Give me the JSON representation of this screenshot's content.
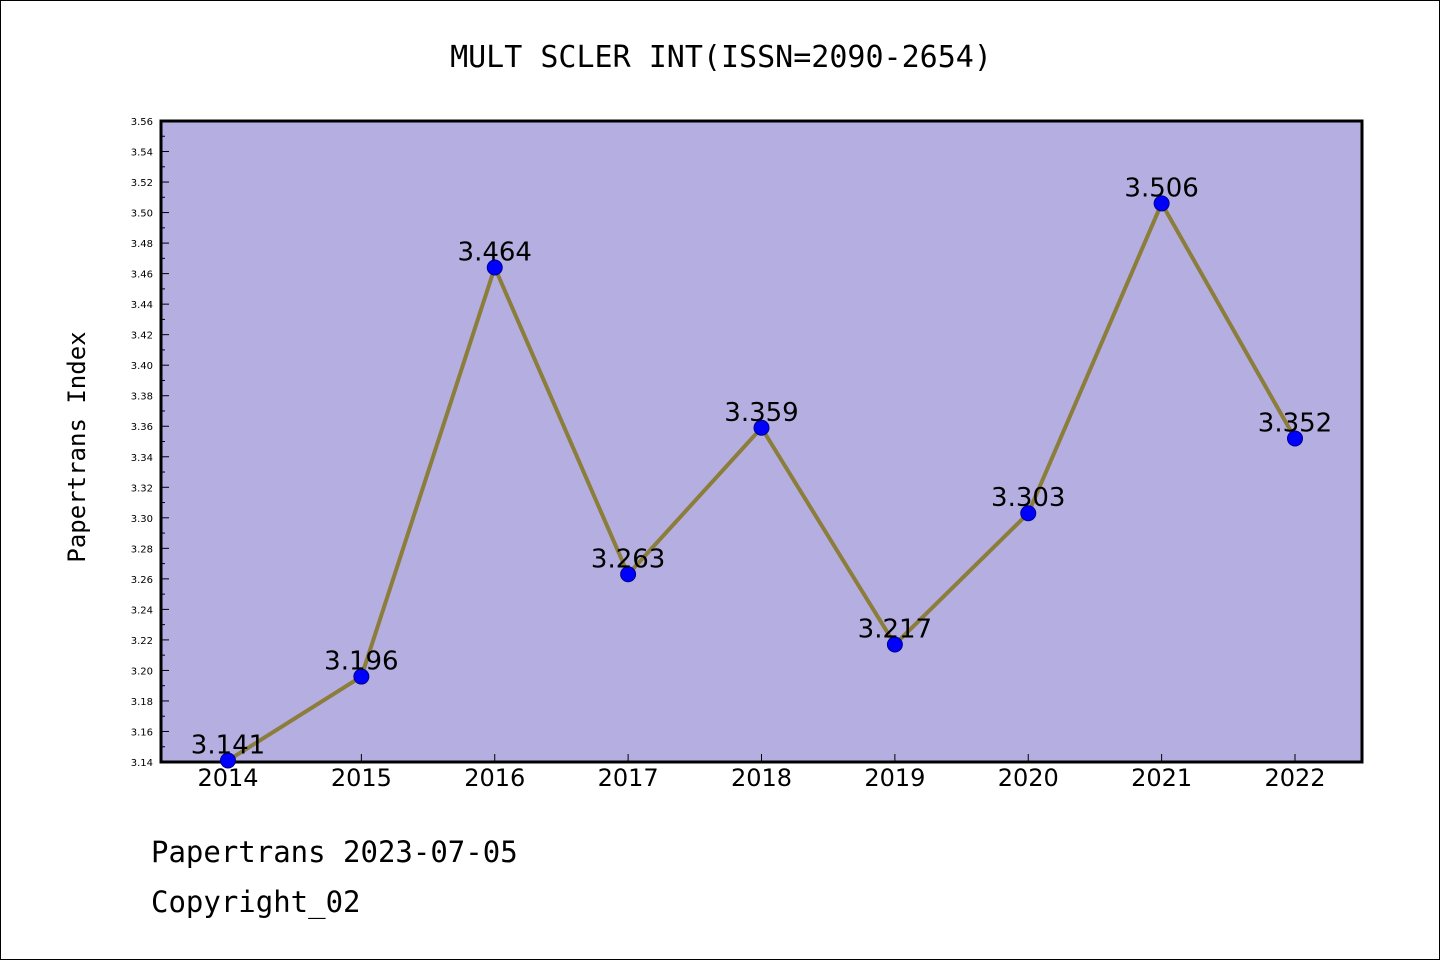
{
  "chart_data": {
    "type": "line",
    "title": "MULT SCLER INT(ISSN=2090-2654)",
    "xlabel": "",
    "ylabel": "Papertrans Index",
    "categories": [
      "2014",
      "2015",
      "2016",
      "2017",
      "2018",
      "2019",
      "2020",
      "2021",
      "2022"
    ],
    "values": [
      3.141,
      3.196,
      3.464,
      3.263,
      3.359,
      3.217,
      3.303,
      3.506,
      3.352
    ],
    "data_labels": [
      "3.141",
      "3.196",
      "3.464",
      "3.263",
      "3.359",
      "3.217",
      "3.303",
      "3.506",
      "3.352"
    ],
    "ylim": [
      3.14,
      3.56
    ],
    "yticks": [
      "3.14",
      "3.16",
      "3.18",
      "3.20",
      "3.22",
      "3.24",
      "3.26",
      "3.28",
      "3.30",
      "3.32",
      "3.34",
      "3.36",
      "3.38",
      "3.40",
      "3.42",
      "3.44",
      "3.46",
      "3.48",
      "3.50",
      "3.52",
      "3.54",
      "3.56"
    ],
    "grid": false,
    "colors": {
      "plot_background": "#b5aee1",
      "line": "#8b7d3a",
      "marker": "#0000ff",
      "marker_edge": "#00008b"
    }
  },
  "footer": {
    "line1": "Papertrans 2023-07-05",
    "line2": "Copyright_02"
  }
}
